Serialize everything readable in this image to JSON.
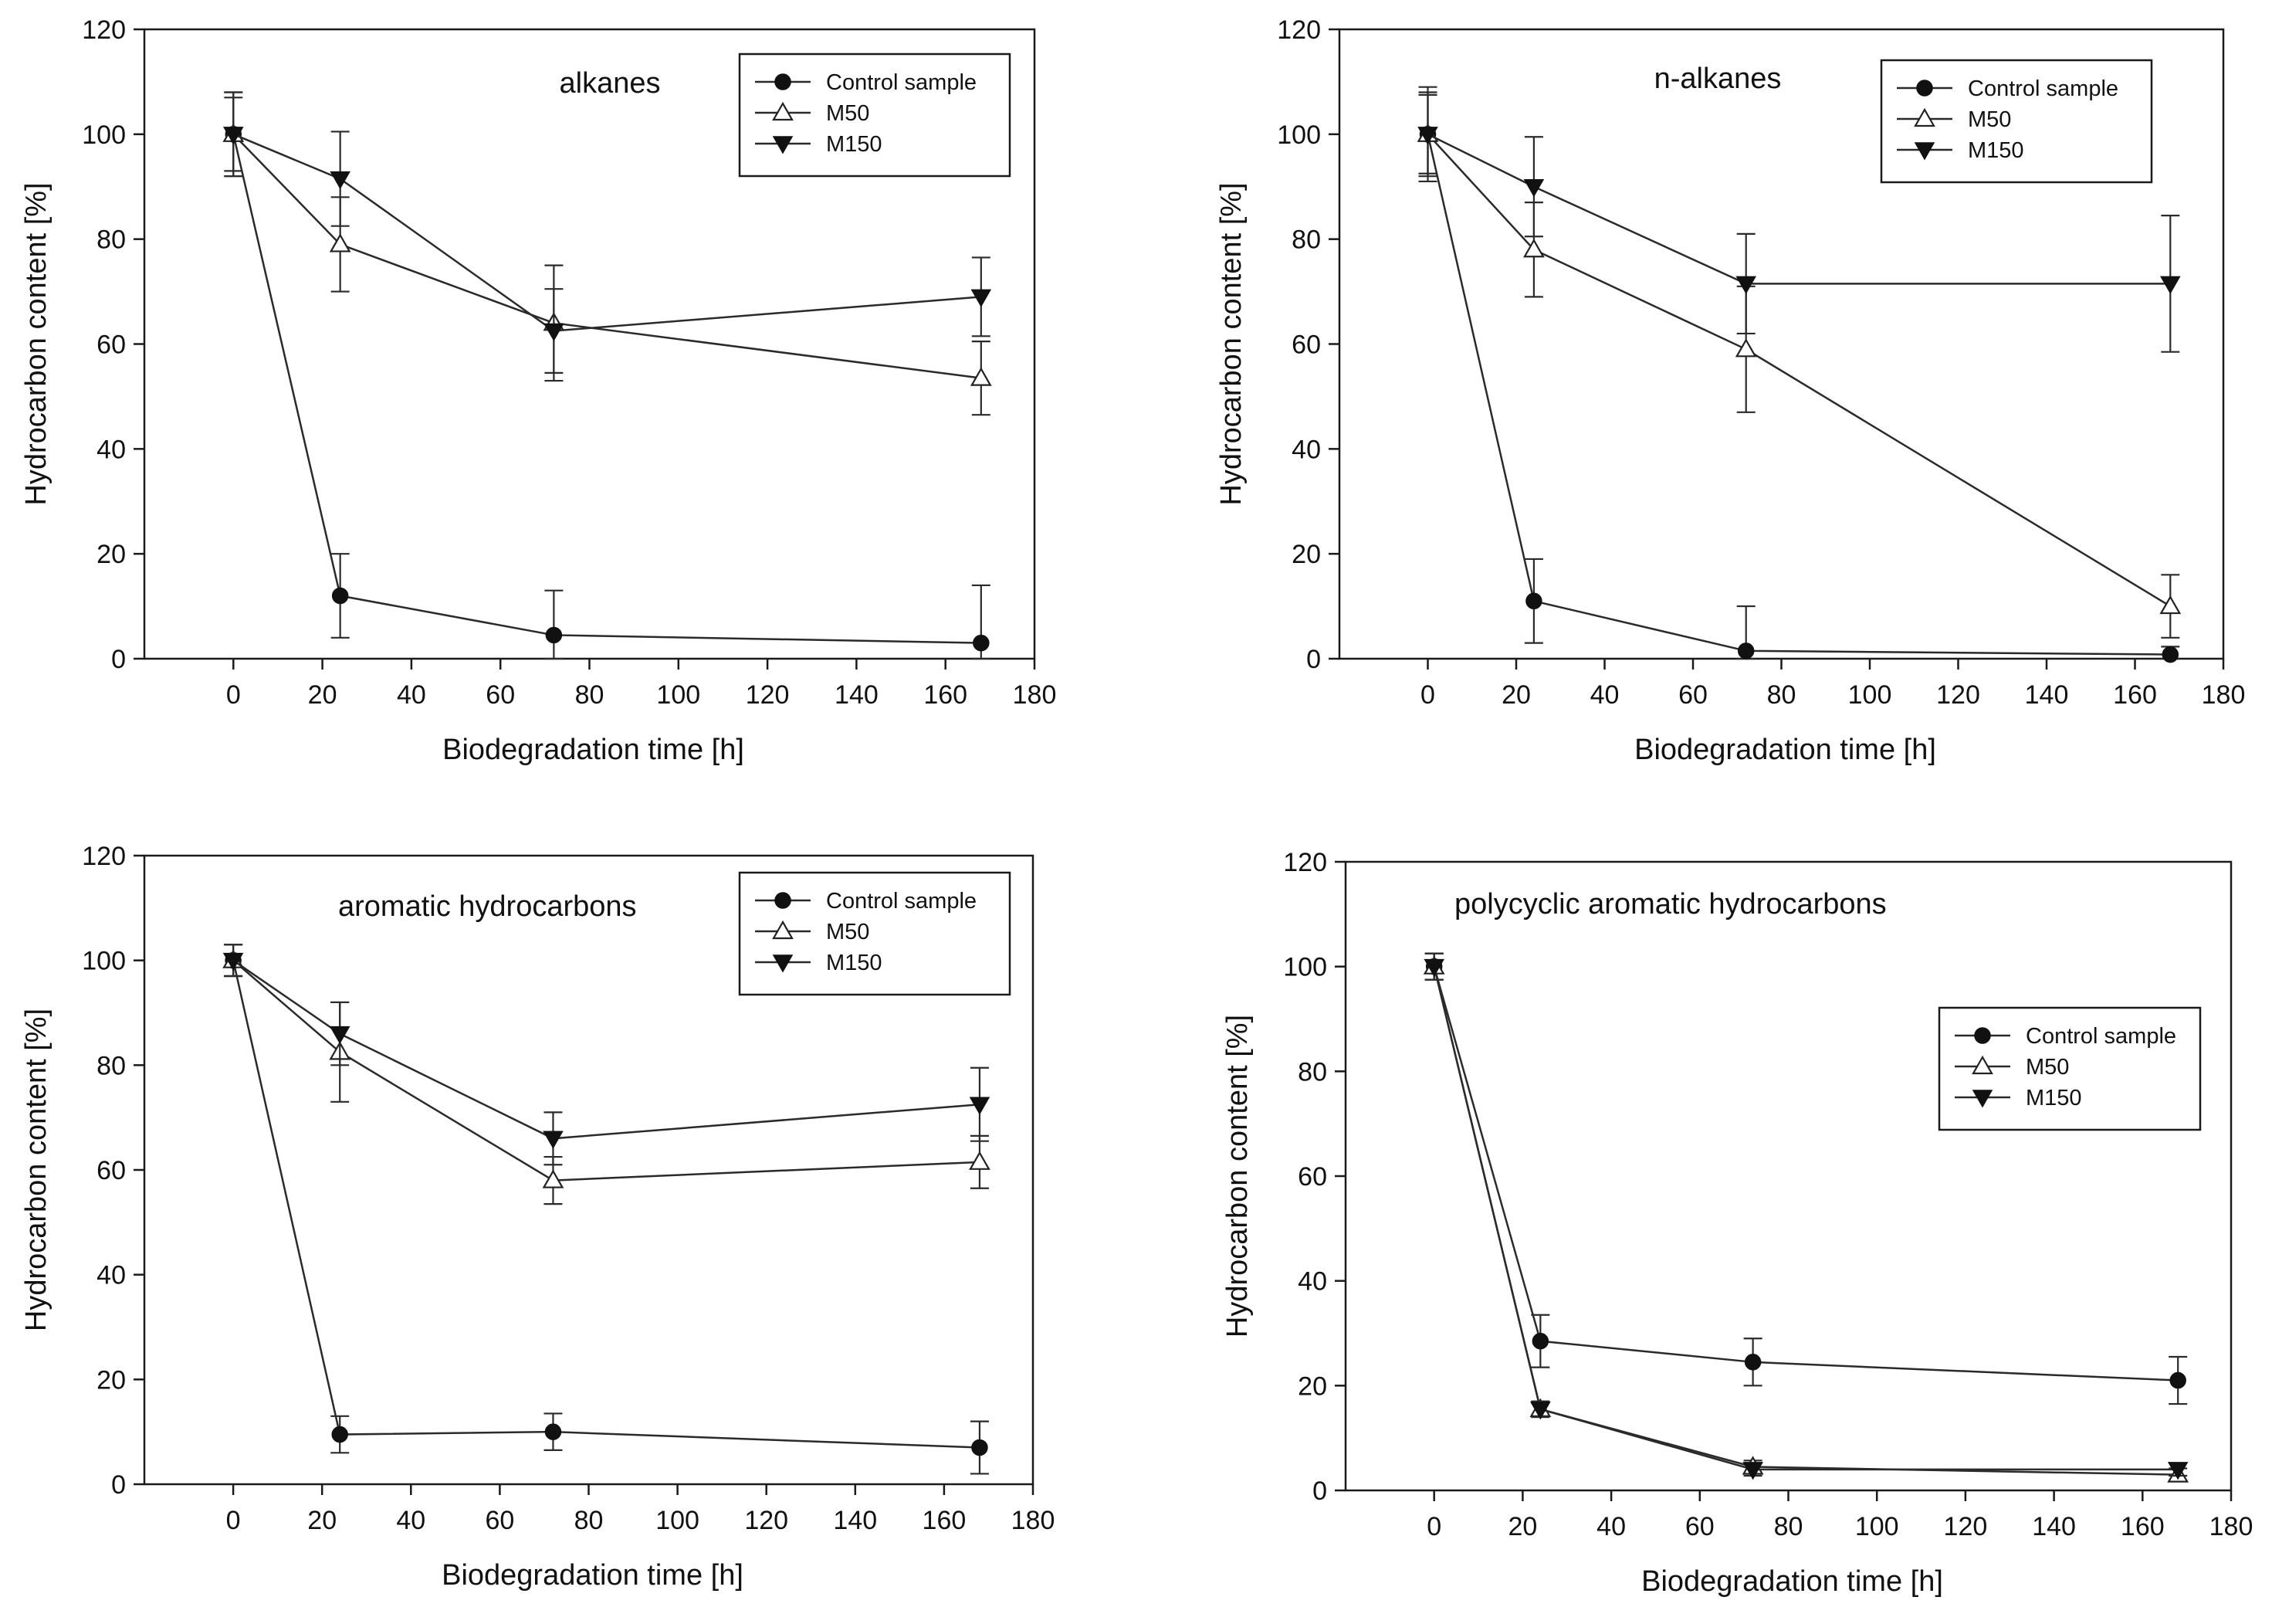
{
  "chart_data": [
    {
      "type": "line",
      "title": "alkanes",
      "xlabel": "Biodegradation time [h]",
      "ylabel": "Hydrocarbon content [%]",
      "xlim": [
        -20,
        180
      ],
      "ylim": [
        0,
        120
      ],
      "xticks": [
        0,
        20,
        40,
        60,
        80,
        100,
        120,
        140,
        160,
        180
      ],
      "yticks": [
        0,
        20,
        40,
        60,
        80,
        100,
        120
      ],
      "legend_position": "top-right",
      "x": [
        0,
        24,
        72,
        168
      ],
      "series": [
        {
          "name": "Control sample",
          "marker": "circle",
          "values": [
            100,
            12,
            4.5,
            3
          ],
          "errors": [
            8,
            8,
            8.5,
            11
          ]
        },
        {
          "name": "M50",
          "marker": "triangle-up-open",
          "values": [
            100,
            79,
            64,
            53.5
          ],
          "errors": [
            7,
            9,
            11,
            7
          ]
        },
        {
          "name": "M150",
          "marker": "triangle-down",
          "values": [
            100,
            91.5,
            62.5,
            69
          ],
          "errors": [
            8,
            9,
            8,
            7.5
          ]
        }
      ]
    },
    {
      "type": "line",
      "title": "n-alkanes",
      "xlabel": "Biodegradation time [h]",
      "ylabel": "Hydrocarbon content [%]",
      "xlim": [
        -20,
        180
      ],
      "ylim": [
        0,
        120
      ],
      "xticks": [
        0,
        20,
        40,
        60,
        80,
        100,
        120,
        140,
        160,
        180
      ],
      "yticks": [
        0,
        20,
        40,
        60,
        80,
        100,
        120
      ],
      "legend_position": "top-right",
      "x": [
        0,
        24,
        72,
        168
      ],
      "series": [
        {
          "name": "Control sample",
          "marker": "circle",
          "values": [
            100,
            11,
            1.5,
            0.8
          ],
          "errors": [
            8,
            8,
            8.5,
            1.5
          ]
        },
        {
          "name": "M50",
          "marker": "triangle-up-open",
          "values": [
            100,
            78,
            59,
            10
          ],
          "errors": [
            7.5,
            9,
            12,
            6
          ]
        },
        {
          "name": "M150",
          "marker": "triangle-down",
          "values": [
            100,
            90,
            71.5,
            71.5
          ],
          "errors": [
            9,
            9.5,
            9.5,
            13
          ]
        }
      ]
    },
    {
      "type": "line",
      "title": "aromatic hydrocarbons",
      "xlabel": "Biodegradation time [h]",
      "ylabel": "Hydrocarbon content [%]",
      "xlim": [
        -20,
        180
      ],
      "ylim": [
        0,
        120
      ],
      "xticks": [
        0,
        20,
        40,
        60,
        80,
        100,
        120,
        140,
        160,
        180
      ],
      "yticks": [
        0,
        20,
        40,
        60,
        80,
        100,
        120
      ],
      "legend_position": "top-right",
      "x": [
        0,
        24,
        72,
        168
      ],
      "series": [
        {
          "name": "Control sample",
          "marker": "circle",
          "values": [
            100,
            9.5,
            10,
            7
          ],
          "errors": [
            3,
            3.5,
            3.5,
            5
          ]
        },
        {
          "name": "M50",
          "marker": "triangle-up-open",
          "values": [
            100,
            82.5,
            58,
            61.5
          ],
          "errors": [
            3,
            9.5,
            4.5,
            5
          ]
        },
        {
          "name": "M150",
          "marker": "triangle-down",
          "values": [
            100,
            86,
            66,
            72.5
          ],
          "errors": [
            3,
            6,
            5,
            7
          ]
        }
      ]
    },
    {
      "type": "line",
      "title": "polycyclic aromatic hydrocarbons",
      "xlabel": "Biodegradation time [h]",
      "ylabel": "Hydrocarbon content [%]",
      "xlim": [
        -20,
        180
      ],
      "ylim": [
        0,
        120
      ],
      "xticks": [
        0,
        20,
        40,
        60,
        80,
        100,
        120,
        140,
        160,
        180
      ],
      "yticks": [
        0,
        20,
        40,
        60,
        80,
        100,
        120
      ],
      "legend_position": "upper-right",
      "x": [
        0,
        24,
        72,
        168
      ],
      "series": [
        {
          "name": "Control sample",
          "marker": "circle",
          "values": [
            100,
            28.5,
            24.5,
            21
          ],
          "errors": [
            2.5,
            5,
            4.5,
            4.5
          ]
        },
        {
          "name": "M50",
          "marker": "triangle-up-open",
          "values": [
            100,
            15.5,
            4.5,
            3
          ],
          "errors": [
            2.5,
            1.5,
            1.2,
            1.2
          ]
        },
        {
          "name": "M150",
          "marker": "triangle-down",
          "values": [
            100,
            15.5,
            4,
            4
          ],
          "errors": [
            2.5,
            1.5,
            1.2,
            1.2
          ]
        }
      ]
    }
  ]
}
